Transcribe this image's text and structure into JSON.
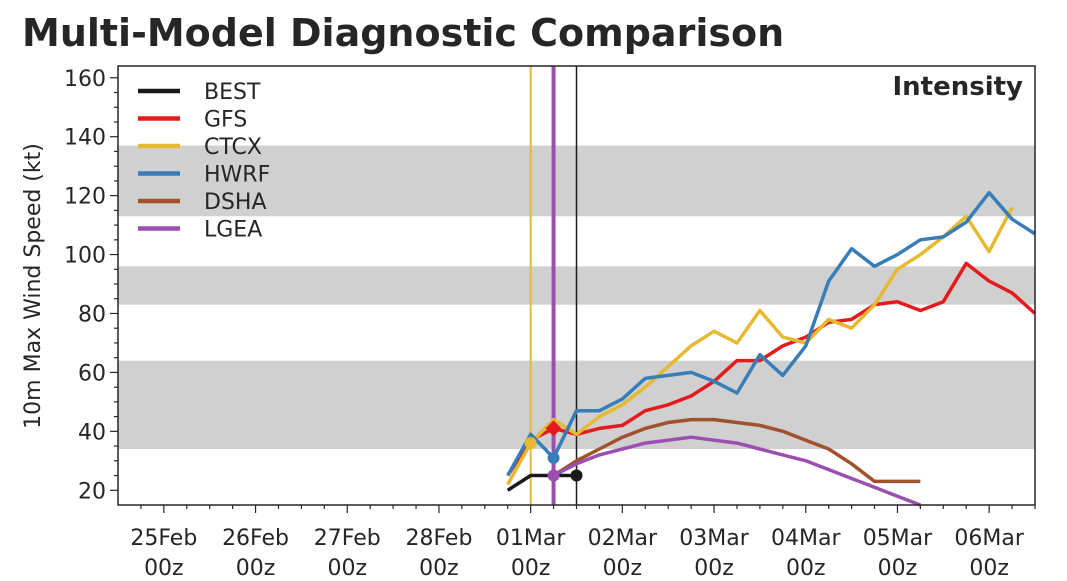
{
  "title": "Multi-Model Diagnostic Comparison",
  "chart_data": {
    "type": "line",
    "title": "Multi-Model Diagnostic Comparison",
    "panel_label": "Intensity",
    "ylabel": "10m Max Wind Speed (kt)",
    "xlabel": "",
    "ylim": [
      15,
      164
    ],
    "xlim": [
      -0.5,
      9.5
    ],
    "x_units": "days since 25Feb 00z",
    "y_ticks": [
      20,
      40,
      60,
      80,
      100,
      120,
      140,
      160
    ],
    "x_tick_labels": [
      {
        "x": 0,
        "line1": "25Feb",
        "line2": "00z"
      },
      {
        "x": 1,
        "line1": "26Feb",
        "line2": "00z"
      },
      {
        "x": 2,
        "line1": "27Feb",
        "line2": "00z"
      },
      {
        "x": 3,
        "line1": "28Feb",
        "line2": "00z"
      },
      {
        "x": 4,
        "line1": "01Mar",
        "line2": "00z"
      },
      {
        "x": 5,
        "line1": "02Mar",
        "line2": "00z"
      },
      {
        "x": 6,
        "line1": "03Mar",
        "line2": "00z"
      },
      {
        "x": 7,
        "line1": "04Mar",
        "line2": "00z"
      },
      {
        "x": 8,
        "line1": "05Mar",
        "line2": "00z"
      },
      {
        "x": 9,
        "line1": "06Mar",
        "line2": "00z"
      }
    ],
    "bands": [
      {
        "y0": 34,
        "y1": 64,
        "color": "#d0d0d0"
      },
      {
        "y0": 83,
        "y1": 96,
        "color": "#d0d0d0"
      },
      {
        "y0": 113,
        "y1": 137,
        "color": "#d0d0d0"
      }
    ],
    "vlines": [
      {
        "x": 4.0,
        "color": "#e6b92e",
        "width": 2
      },
      {
        "x": 4.25,
        "color": "#9b4fb0",
        "width": 4
      },
      {
        "x": 4.5,
        "color": "#1a1a1a",
        "width": 1.5
      }
    ],
    "series": [
      {
        "name": "BEST",
        "color": "#1a1a1a",
        "x": [
          3.75,
          4.0,
          4.25,
          4.5
        ],
        "y": [
          20,
          25,
          25,
          25
        ],
        "marker": {
          "x": 4.5,
          "y": 25
        }
      },
      {
        "name": "GFS",
        "color": "#e41a1c",
        "x": [
          3.75,
          4.0,
          4.25,
          4.5,
          4.75,
          5.0,
          5.25,
          5.5,
          5.75,
          6.0,
          6.25,
          6.5,
          6.75,
          7.0,
          7.25,
          7.5,
          7.75,
          8.0,
          8.25,
          8.5,
          8.75,
          9.0,
          9.25,
          9.5
        ],
        "y": [
          25,
          37,
          41,
          39,
          41,
          42,
          47,
          49,
          52,
          57,
          64,
          64,
          69,
          72,
          77,
          78,
          83,
          84,
          81,
          84,
          97,
          91,
          87,
          80
        ],
        "marker": {
          "x": 4.25,
          "y": 41,
          "shape": "diamond"
        }
      },
      {
        "name": "CTCX",
        "color": "#e6b92e",
        "x": [
          3.75,
          4.0,
          4.25,
          4.5,
          4.75,
          5.0,
          5.25,
          5.5,
          5.75,
          6.0,
          6.25,
          6.5,
          6.75,
          7.0,
          7.25,
          7.5,
          7.75,
          8.0,
          8.25,
          8.5,
          8.75,
          9.0,
          9.25
        ],
        "y": [
          22,
          36,
          44,
          39,
          45,
          49,
          55,
          62,
          69,
          74,
          70,
          81,
          72,
          70,
          78,
          75,
          83,
          95,
          100,
          106,
          113,
          101,
          116
        ],
        "marker": {
          "x": 4.0,
          "y": 36
        }
      },
      {
        "name": "HWRF",
        "color": "#377eb8",
        "x": [
          3.75,
          4.0,
          4.25,
          4.5,
          4.75,
          5.0,
          5.25,
          5.5,
          5.75,
          6.0,
          6.25,
          6.5,
          6.75,
          7.0,
          7.25,
          7.5,
          7.75,
          8.0,
          8.25,
          8.5,
          8.75,
          9.0,
          9.25,
          9.5
        ],
        "y": [
          25,
          39,
          31,
          47,
          47,
          51,
          58,
          59,
          60,
          57,
          53,
          66,
          59,
          69,
          91,
          102,
          96,
          100,
          105,
          106,
          111,
          121,
          112,
          107
        ],
        "marker": {
          "x": 4.25,
          "y": 31
        }
      },
      {
        "name": "DSHA",
        "color": "#a0522d",
        "x": [
          4.25,
          4.5,
          4.75,
          5.0,
          5.25,
          5.5,
          5.75,
          6.0,
          6.25,
          6.5,
          6.75,
          7.0,
          7.25,
          7.5,
          7.75,
          8.0,
          8.25
        ],
        "y": [
          25,
          30,
          34,
          38,
          41,
          43,
          44,
          44,
          43,
          42,
          40,
          37,
          34,
          29,
          23,
          23,
          23
        ]
      },
      {
        "name": "LGEA",
        "color": "#9b4fb0",
        "x": [
          4.25,
          4.5,
          4.75,
          5.0,
          5.25,
          5.5,
          5.75,
          6.0,
          6.25,
          6.5,
          6.75,
          7.0,
          7.25,
          7.5,
          7.75,
          8.0,
          8.25
        ],
        "y": [
          25,
          29,
          32,
          34,
          36,
          37,
          38,
          37,
          36,
          34,
          32,
          30,
          27,
          24,
          21,
          18,
          15
        ],
        "marker": {
          "x": 4.25,
          "y": 25
        }
      }
    ],
    "legend_position": "top-left",
    "grid": false
  }
}
